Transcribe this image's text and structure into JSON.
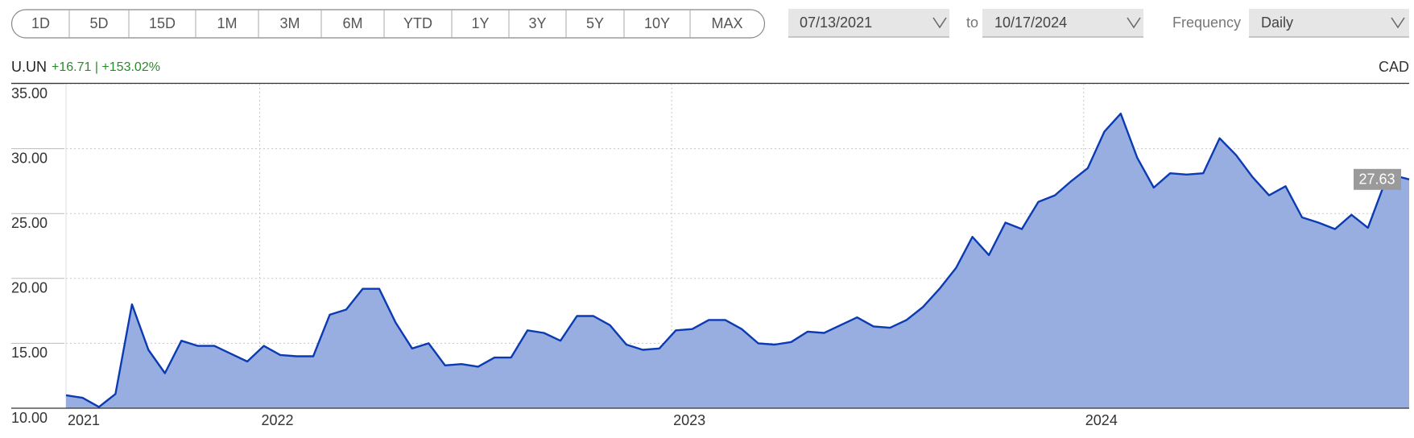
{
  "controls": {
    "range_buttons": [
      "1D",
      "5D",
      "15D",
      "1M",
      "3M",
      "6M",
      "YTD",
      "1Y",
      "3Y",
      "5Y",
      "10Y",
      "MAX"
    ],
    "date_from": "07/13/2021",
    "to_label": "to",
    "date_to": "10/17/2024",
    "frequency_label": "Frequency",
    "frequency": "Daily"
  },
  "chart_data": {
    "type": "area",
    "title": "U.UN",
    "subtitle": "+16.71 | +153.02%",
    "currency": "CAD",
    "color": "#0b3bb3",
    "fill_color": "#98aee0",
    "last_price": 27.63,
    "grid": true,
    "x": [
      2021.53,
      2021.57,
      2021.61,
      2021.65,
      2021.69,
      2021.73,
      2021.77,
      2021.81,
      2021.85,
      2021.89,
      2021.93,
      2021.97,
      2022.01,
      2022.05,
      2022.09,
      2022.13,
      2022.17,
      2022.21,
      2022.25,
      2022.29,
      2022.33,
      2022.37,
      2022.41,
      2022.45,
      2022.49,
      2022.53,
      2022.57,
      2022.61,
      2022.65,
      2022.69,
      2022.73,
      2022.77,
      2022.81,
      2022.85,
      2022.89,
      2022.93,
      2022.97,
      2023.01,
      2023.05,
      2023.09,
      2023.13,
      2023.17,
      2023.21,
      2023.25,
      2023.29,
      2023.33,
      2023.37,
      2023.41,
      2023.45,
      2023.49,
      2023.53,
      2023.57,
      2023.61,
      2023.65,
      2023.69,
      2023.73,
      2023.77,
      2023.81,
      2023.85,
      2023.89,
      2023.93,
      2023.97,
      2024.01,
      2024.05,
      2024.09,
      2024.13,
      2024.17,
      2024.21,
      2024.25,
      2024.29,
      2024.33,
      2024.37,
      2024.41,
      2024.45,
      2024.49,
      2024.53,
      2024.57,
      2024.61,
      2024.65,
      2024.69,
      2024.73,
      2024.77,
      2024.79
    ],
    "values": [
      11.0,
      10.8,
      10.1,
      11.1,
      18.0,
      14.5,
      12.7,
      15.2,
      14.8,
      14.8,
      14.2,
      13.6,
      14.8,
      14.1,
      14.0,
      14.0,
      17.2,
      17.6,
      19.2,
      19.2,
      16.6,
      14.6,
      15.0,
      13.3,
      13.4,
      13.2,
      13.9,
      13.9,
      16.0,
      15.8,
      15.2,
      17.1,
      17.1,
      16.4,
      14.9,
      14.5,
      14.6,
      16.0,
      16.1,
      16.8,
      16.8,
      16.1,
      15.0,
      14.9,
      15.1,
      15.9,
      15.8,
      16.4,
      17.0,
      16.3,
      16.2,
      16.8,
      17.8,
      19.2,
      20.8,
      23.2,
      21.8,
      24.3,
      23.8,
      25.9,
      26.4,
      27.5,
      28.5,
      31.3,
      32.7,
      29.3,
      27.0,
      28.1,
      28.0,
      28.1,
      30.8,
      29.5,
      27.8,
      26.4,
      27.1,
      24.7,
      24.3,
      23.8,
      24.9,
      23.9,
      27.3,
      27.8,
      27.63
    ],
    "xlim": [
      2021.53,
      2024.79
    ],
    "xticks": [
      {
        "value": 2021.53,
        "label": "2021"
      },
      2022,
      2023,
      2024
    ],
    "ylim": [
      10,
      35
    ],
    "yticks": [
      {
        "value": 10,
        "label": "10.00"
      },
      {
        "value": 15,
        "label": "15.00"
      },
      {
        "value": 20,
        "label": "20.00"
      },
      {
        "value": 25,
        "label": "25.00"
      },
      {
        "value": 30,
        "label": "30.00"
      },
      {
        "value": 35,
        "label": "35.00"
      }
    ]
  }
}
